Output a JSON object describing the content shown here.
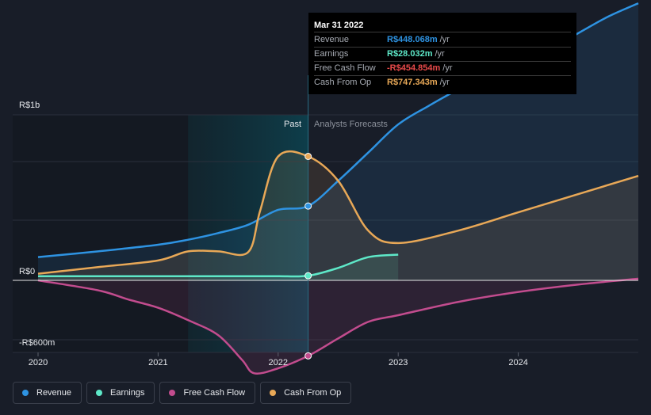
{
  "chart_data": {
    "type": "line",
    "y_label_top": "R$1b",
    "y_label_zero": "R$0",
    "y_label_bottom": "-R$600m",
    "ylim": [
      -720,
      1670
    ],
    "xlim": [
      2020,
      2025.0
    ],
    "x_ticks": [
      2020,
      2021,
      2022,
      2023,
      2024
    ],
    "x_tick_labels": [
      "2020",
      "2021",
      "2022",
      "2023",
      "2024"
    ],
    "divider_x": 2022.25,
    "highlight_start_x": 2021.25,
    "past_label": "Past",
    "forecast_label": "Analysts Forecasts",
    "series": [
      {
        "name": "Revenue",
        "color": "#2e93e2",
        "x": [
          2020.0,
          2020.5,
          2021.0,
          2021.25,
          2021.5,
          2021.75,
          2022.0,
          2022.25,
          2022.5,
          2022.75,
          2023.0,
          2023.25,
          2023.5,
          2023.75,
          2024.0,
          2024.25,
          2024.5,
          2024.75,
          2025.0
        ],
        "y": [
          140,
          175,
          215,
          245,
          285,
          335,
          425,
          448,
          600,
          770,
          940,
          1050,
          1150,
          1225,
          1300,
          1390,
          1490,
          1590,
          1670
        ]
      },
      {
        "name": "Earnings",
        "color": "#5ee8c8",
        "x": [
          2020.0,
          2020.5,
          2021.0,
          2021.25,
          2021.5,
          2021.75,
          2022.0,
          2022.25,
          2022.5,
          2022.75,
          2023.0
        ],
        "y": [
          25,
          25,
          25,
          25,
          25,
          25,
          25,
          28,
          75,
          140,
          155
        ]
      },
      {
        "name": "Free Cash Flow",
        "color": "#c24c8e",
        "x": [
          2020.0,
          2020.5,
          2020.75,
          2021.0,
          2021.25,
          2021.5,
          2021.7,
          2021.8,
          2022.0,
          2022.25,
          2022.5,
          2022.75,
          2023.0,
          2023.5,
          2024.0,
          2024.5,
          2025.0
        ],
        "y": [
          0,
          -60,
          -115,
          -165,
          -240,
          -330,
          -480,
          -560,
          -530,
          -455,
          -350,
          -250,
          -210,
          -130,
          -70,
          -25,
          10
        ]
      },
      {
        "name": "Cash From Op",
        "color": "#e8a857",
        "x": [
          2020.0,
          2020.5,
          2021.0,
          2021.25,
          2021.5,
          2021.75,
          2021.85,
          2022.0,
          2022.25,
          2022.5,
          2022.75,
          2023.0,
          2023.5,
          2024.0,
          2024.5,
          2025.0
        ],
        "y": [
          40,
          80,
          120,
          175,
          175,
          170,
          420,
          747,
          747,
          600,
          300,
          225,
          300,
          410,
          520,
          630
        ]
      }
    ],
    "tooltip": {
      "date": "Mar 31 2022",
      "rows": [
        {
          "label": "Revenue",
          "value": "R$448.068m",
          "unit": "/yr",
          "color": "#2e93e2"
        },
        {
          "label": "Earnings",
          "value": "R$28.032m",
          "unit": "/yr",
          "color": "#5ee8c8"
        },
        {
          "label": "Free Cash Flow",
          "value": "-R$454.854m",
          "unit": "/yr",
          "color": "#e94a4a"
        },
        {
          "label": "Cash From Op",
          "value": "R$747.343m",
          "unit": "/yr",
          "color": "#e8a857"
        }
      ]
    }
  },
  "legend": [
    {
      "label": "Revenue",
      "color": "#2e93e2"
    },
    {
      "label": "Earnings",
      "color": "#5ee8c8"
    },
    {
      "label": "Free Cash Flow",
      "color": "#c24c8e"
    },
    {
      "label": "Cash From Op",
      "color": "#e8a857"
    }
  ]
}
